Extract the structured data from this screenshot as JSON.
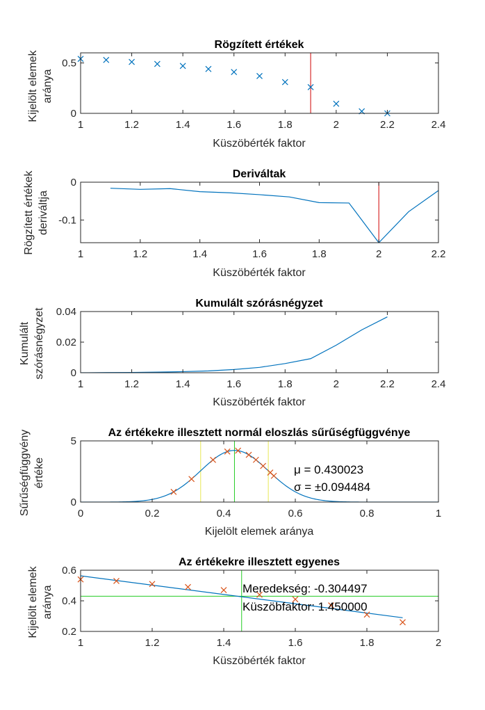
{
  "colors": {
    "blue": "#0072BD",
    "orange": "#D95319",
    "red": "#D00000",
    "green": "#22CC22",
    "yellow": "#E8E855",
    "axis": "#262626"
  },
  "chart_data": [
    {
      "type": "scatter",
      "title": "Rögzített értékek",
      "xlabel": "Küszöbérték faktor",
      "ylabel": [
        "Kijelölt elemek",
        "aránya"
      ],
      "xlim": [
        1,
        2.4
      ],
      "ylim": [
        0,
        0.6
      ],
      "xticks": [
        "1",
        "1.2",
        "1.4",
        "1.6",
        "1.8",
        "2",
        "2.2",
        "2.4"
      ],
      "yticks": [
        "0",
        "0.5"
      ],
      "marker": "x",
      "series": [
        {
          "x": [
            1,
            1.1,
            1.2,
            1.3,
            1.4,
            1.5,
            1.6,
            1.7,
            1.8,
            1.9,
            2.0,
            2.1,
            2.2
          ],
          "y": [
            0.54,
            0.53,
            0.51,
            0.49,
            0.47,
            0.44,
            0.41,
            0.37,
            0.31,
            0.26,
            0.095,
            0.02,
            0.0
          ]
        }
      ],
      "vline": 1.9
    },
    {
      "type": "line",
      "title": "Deriváltak",
      "xlabel": "Küszöbérték faktor",
      "ylabel": [
        "Rögzített értékek",
        "deriváltja"
      ],
      "xlim": [
        1,
        2.2
      ],
      "ylim": [
        -0.16,
        0
      ],
      "xticks": [
        "1",
        "1.2",
        "1.4",
        "1.6",
        "1.8",
        "2",
        "2.2"
      ],
      "yticks": [
        "0",
        "-0.1"
      ],
      "series": [
        {
          "x": [
            1.1,
            1.2,
            1.3,
            1.4,
            1.5,
            1.6,
            1.7,
            1.8,
            1.9,
            2.0,
            2.1,
            2.2
          ],
          "y": [
            -0.016,
            -0.019,
            -0.017,
            -0.025,
            -0.028,
            -0.033,
            -0.039,
            -0.054,
            -0.055,
            -0.16,
            -0.078,
            -0.022
          ]
        }
      ],
      "vline": 2.0
    },
    {
      "type": "line",
      "title": "Kumulált szórásnégyzet",
      "xlabel": "Küszöbérték faktor",
      "ylabel": [
        "Kumulált",
        "szórásnégyzet"
      ],
      "xlim": [
        1,
        2.4
      ],
      "ylim": [
        0,
        0.04
      ],
      "xticks": [
        "1",
        "1.2",
        "1.4",
        "1.6",
        "1.8",
        "2",
        "2.2",
        "2.4"
      ],
      "yticks": [
        "0",
        "0.02",
        "0.04"
      ],
      "series": [
        {
          "x": [
            1,
            1.1,
            1.2,
            1.3,
            1.4,
            1.5,
            1.6,
            1.7,
            1.8,
            1.9,
            2.0,
            2.1,
            2.2
          ],
          "y": [
            0,
            0.0001,
            0.0002,
            0.0004,
            0.0007,
            0.0012,
            0.0021,
            0.0035,
            0.006,
            0.0092,
            0.018,
            0.028,
            0.0365
          ]
        }
      ]
    },
    {
      "type": "line",
      "title": "Az értékekre illesztett normál eloszlás sűrűségfüggvénye",
      "xlabel": "Kijelölt elemek aránya",
      "ylabel": [
        "Sűrűségfüggvény",
        "értéke"
      ],
      "xlim": [
        0,
        1
      ],
      "ylim": [
        0,
        5
      ],
      "xticks": [
        "0",
        "0.2",
        "0.4",
        "0.6",
        "0.8",
        "1"
      ],
      "yticks": [
        "0",
        "5"
      ],
      "mu": 0.430023,
      "sigma": 0.094484,
      "points_x": [
        0.26,
        0.31,
        0.37,
        0.41,
        0.44,
        0.47,
        0.49,
        0.51,
        0.53,
        0.54
      ],
      "vlines_green": [
        0.43
      ],
      "vlines_yellow": [
        0.3355,
        0.5245
      ],
      "annotations": [
        "μ = 0.430023",
        "σ = ±0.094484"
      ]
    },
    {
      "type": "scatter",
      "title": "Az értékekre illesztett egyenes",
      "xlabel": "Küszöbérték faktor",
      "ylabel": [
        "Kijelölt elemek",
        "aránya"
      ],
      "xlim": [
        1,
        2
      ],
      "ylim": [
        0.2,
        0.6
      ],
      "xticks": [
        "1",
        "1.2",
        "1.4",
        "1.6",
        "1.8",
        "2"
      ],
      "yticks": [
        "0.2",
        "0.4",
        "0.6"
      ],
      "series": [
        {
          "x": [
            1,
            1.1,
            1.2,
            1.3,
            1.4,
            1.5,
            1.6,
            1.7,
            1.8,
            1.9
          ],
          "y": [
            0.54,
            0.53,
            0.51,
            0.49,
            0.47,
            0.44,
            0.41,
            0.37,
            0.31,
            0.26
          ]
        }
      ],
      "fit_line": {
        "x": [
          1,
          1.9
        ],
        "y": [
          0.5635,
          0.2895
        ]
      },
      "vline": 1.45,
      "hline": 0.43,
      "annotations": [
        "Meredekség: -0.304497",
        "Küszöbfaktor: 1.450000"
      ]
    }
  ]
}
